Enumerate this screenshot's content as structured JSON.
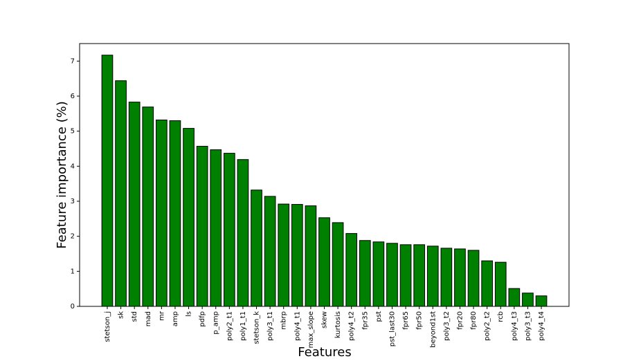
{
  "chart_data": {
    "type": "bar",
    "x_label": "Features",
    "y_label": "Feature importance (%)",
    "categories": [
      "stetson_j",
      "sk",
      "std",
      "mad",
      "mr",
      "amp",
      "ls",
      "pdfp",
      "p_amp",
      "poly2_t1",
      "poly1_t1",
      "stetson_k",
      "poly3_t1",
      "mbrp",
      "poly4_t1",
      "max_slope",
      "skew",
      "kurtosis",
      "poly4_t2",
      "fpr35",
      "pst",
      "pst_last30",
      "fpr65",
      "fpr50",
      "beyond1st",
      "poly3_t2",
      "fpr20",
      "fpr80",
      "poly2_t2",
      "rcb",
      "poly4_t3",
      "poly3_t3",
      "poly4_t4"
    ],
    "values": [
      7.17,
      6.44,
      5.83,
      5.69,
      5.32,
      5.3,
      5.08,
      4.57,
      4.47,
      4.37,
      4.19,
      3.32,
      3.14,
      2.92,
      2.91,
      2.87,
      2.53,
      2.39,
      2.08,
      1.88,
      1.84,
      1.8,
      1.76,
      1.76,
      1.72,
      1.66,
      1.64,
      1.6,
      1.3,
      1.26,
      0.51,
      0.38,
      0.3
    ],
    "color": "#008000",
    "ylim": [
      0,
      7.5
    ],
    "yticks": [
      0,
      1,
      2,
      3,
      4,
      5,
      6,
      7
    ],
    "grid": false
  }
}
